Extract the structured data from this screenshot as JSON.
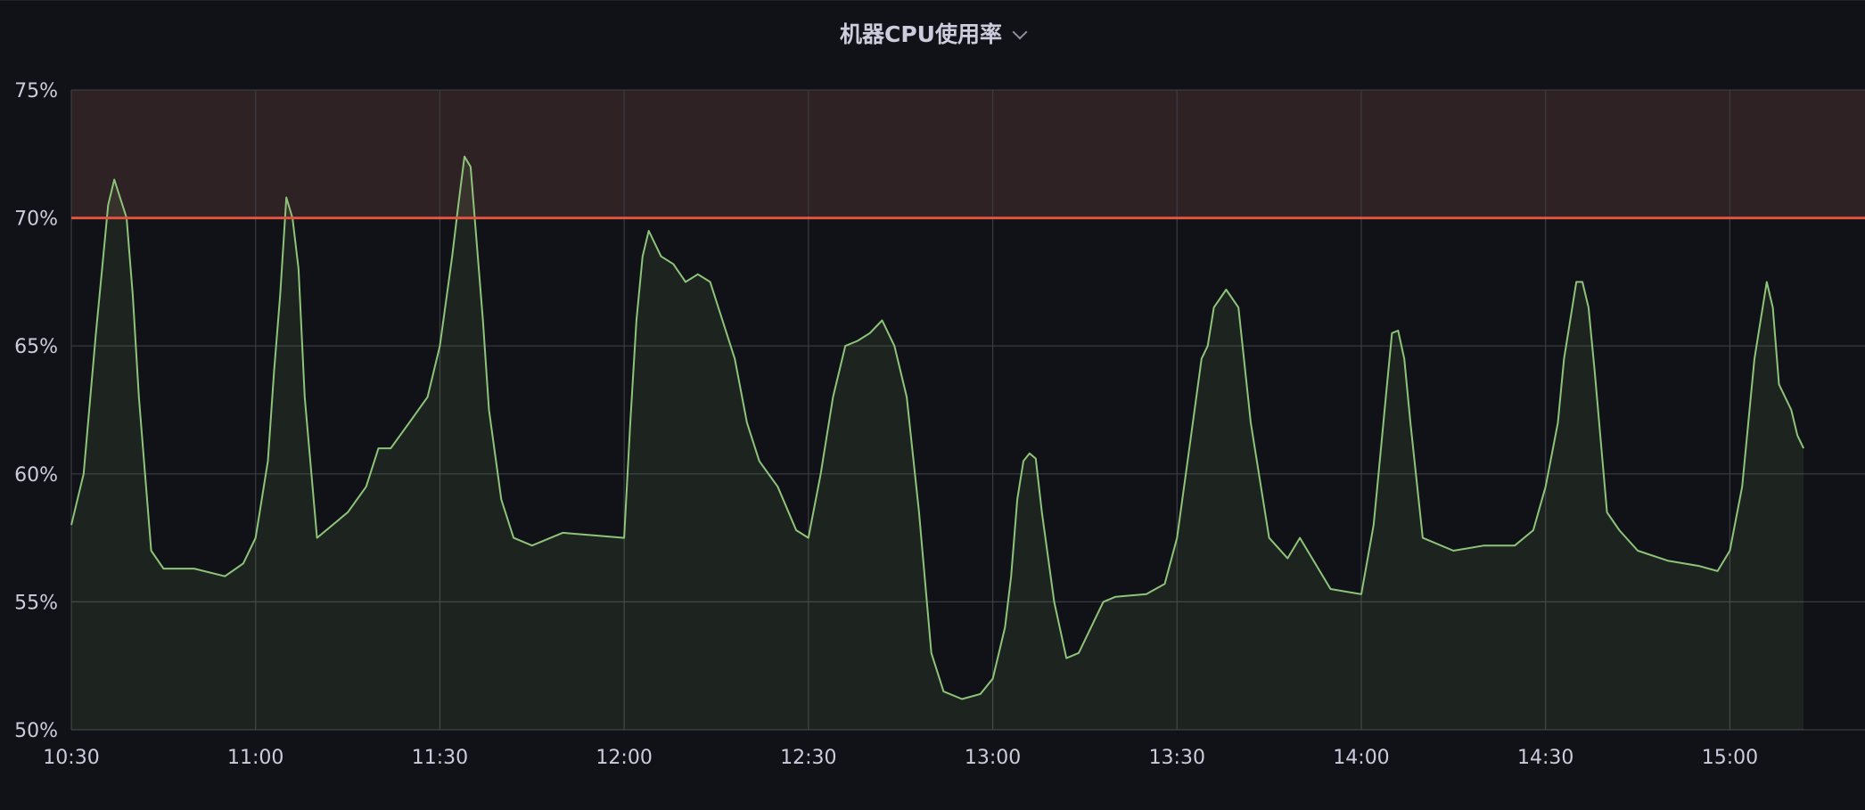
{
  "panel": {
    "title": "机器CPU使用率"
  },
  "chart_data": {
    "type": "area",
    "title": "机器CPU使用率",
    "xlabel": "",
    "ylabel": "",
    "x_ticks": [
      "10:30",
      "11:00",
      "11:30",
      "12:00",
      "12:30",
      "13:00",
      "13:30",
      "14:00",
      "14:30",
      "15:00"
    ],
    "y_ticks": [
      "50%",
      "55%",
      "60%",
      "65%",
      "70%",
      "75%"
    ],
    "x_range_minutes": [
      630,
      922
    ],
    "ylim": [
      50,
      75
    ],
    "threshold": {
      "value": 70,
      "color": "#e0533e"
    },
    "grid": true,
    "series": [
      {
        "color": "#8ec47a",
        "x": [
          "10:30",
          "10:32",
          "10:34",
          "10:35",
          "10:36",
          "10:37",
          "10:39",
          "10:40",
          "10:41",
          "10:43",
          "10:45",
          "10:50",
          "10:55",
          "10:58",
          "11:00",
          "11:02",
          "11:03",
          "11:04",
          "11:05",
          "11:06",
          "11:07",
          "11:08",
          "11:10",
          "11:15",
          "11:18",
          "11:20",
          "11:22",
          "11:25",
          "11:28",
          "11:30",
          "11:32",
          "11:33",
          "11:34",
          "11:35",
          "11:36",
          "11:37",
          "11:38",
          "11:40",
          "11:42",
          "11:45",
          "11:50",
          "11:55",
          "12:00",
          "12:01",
          "12:02",
          "12:03",
          "12:04",
          "12:06",
          "12:08",
          "12:10",
          "12:12",
          "12:14",
          "12:16",
          "12:18",
          "12:20",
          "12:22",
          "12:25",
          "12:28",
          "12:30",
          "12:32",
          "12:34",
          "12:36",
          "12:38",
          "12:40",
          "12:42",
          "12:44",
          "12:46",
          "12:48",
          "12:50",
          "12:52",
          "12:55",
          "12:58",
          "13:00",
          "13:02",
          "13:03",
          "13:04",
          "13:05",
          "13:06",
          "13:07",
          "13:08",
          "13:10",
          "13:12",
          "13:14",
          "13:16",
          "13:18",
          "13:20",
          "13:25",
          "13:28",
          "13:30",
          "13:32",
          "13:34",
          "13:35",
          "13:36",
          "13:38",
          "13:40",
          "13:42",
          "13:45",
          "13:48",
          "13:50",
          "13:55",
          "14:00",
          "14:02",
          "14:03",
          "14:04",
          "14:05",
          "14:06",
          "14:07",
          "14:08",
          "14:10",
          "14:15",
          "14:20",
          "14:25",
          "14:28",
          "14:30",
          "14:32",
          "14:33",
          "14:34",
          "14:35",
          "14:36",
          "14:37",
          "14:38",
          "14:40",
          "14:42",
          "14:45",
          "14:50",
          "14:55",
          "14:58",
          "15:00",
          "15:02",
          "15:03",
          "15:04",
          "15:05",
          "15:06",
          "15:07",
          "15:08",
          "15:10",
          "15:11",
          "15:12"
        ],
        "values": [
          58,
          60,
          65.5,
          68,
          70.5,
          71.5,
          70,
          67,
          63,
          57,
          56.3,
          56.3,
          56,
          56.5,
          57.5,
          60.5,
          64,
          67,
          70.8,
          70,
          68,
          63,
          57.5,
          58.5,
          59.5,
          61,
          61,
          62,
          63,
          65,
          68.5,
          70.5,
          72.4,
          72,
          69,
          66,
          62.5,
          59,
          57.5,
          57.2,
          57.7,
          57.6,
          57.5,
          62,
          66,
          68.5,
          69.5,
          68.5,
          68.2,
          67.5,
          67.8,
          67.5,
          66,
          64.5,
          62,
          60.5,
          59.5,
          57.8,
          57.5,
          60,
          63,
          65,
          65.2,
          65.5,
          66,
          65,
          63,
          58.5,
          53,
          51.5,
          51.2,
          51.4,
          52,
          54,
          56,
          59,
          60.5,
          60.8,
          60.6,
          58.5,
          55,
          52.8,
          53,
          54,
          55,
          55.2,
          55.3,
          55.7,
          57.5,
          61,
          64.5,
          65,
          66.5,
          67.2,
          66.5,
          62,
          57.5,
          56.7,
          57.5,
          55.5,
          55.3,
          58,
          60.5,
          63,
          65.5,
          65.6,
          64.5,
          62,
          57.5,
          57,
          57.2,
          57.2,
          57.8,
          59.5,
          62,
          64.5,
          66,
          67.5,
          67.5,
          66.5,
          64,
          58.5,
          57.8,
          57,
          56.6,
          56.4,
          56.2,
          57,
          59.5,
          62,
          64.5,
          66,
          67.5,
          66.5,
          63.5,
          62.5,
          61.5,
          61
        ]
      }
    ]
  }
}
